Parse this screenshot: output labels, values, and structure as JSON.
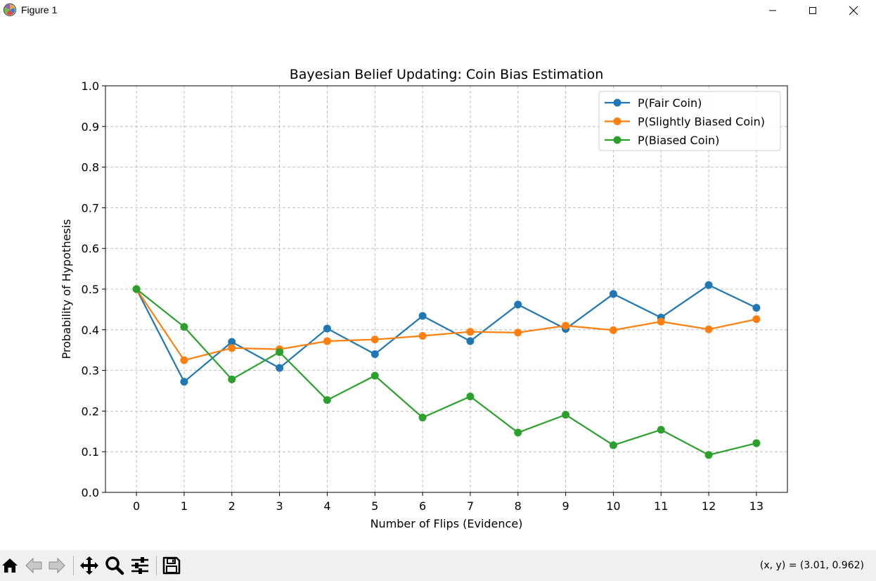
{
  "window": {
    "title": "Figure 1",
    "icons": {
      "app": "matplotlib-icon",
      "minimize": "minimize-icon",
      "maximize": "maximize-icon",
      "close": "close-icon"
    }
  },
  "toolbar": {
    "buttons": [
      {
        "name": "home-button",
        "icon": "home-icon"
      },
      {
        "name": "back-button",
        "icon": "back-arrow-icon"
      },
      {
        "name": "forward-button",
        "icon": "forward-arrow-icon"
      },
      {
        "name": "pan-button",
        "icon": "move-icon"
      },
      {
        "name": "zoom-button",
        "icon": "magnifier-icon"
      },
      {
        "name": "configure-subplots-button",
        "icon": "sliders-icon"
      },
      {
        "name": "save-button",
        "icon": "floppy-disk-icon"
      }
    ],
    "coordinates": "(x, y) = (3.01, 0.962)"
  },
  "chart_data": {
    "type": "line",
    "title": "Bayesian Belief Updating: Coin Bias Estimation",
    "xlabel": "Number of Flips (Evidence)",
    "ylabel": "Probability of Hypothesis",
    "x": [
      0,
      1,
      2,
      3,
      4,
      5,
      6,
      7,
      8,
      9,
      10,
      11,
      12,
      13
    ],
    "xlim": [
      -0.65,
      13.65
    ],
    "ylim": [
      0.0,
      1.0
    ],
    "xticks": [
      "0",
      "1",
      "2",
      "3",
      "4",
      "5",
      "6",
      "7",
      "8",
      "9",
      "10",
      "11",
      "12",
      "13"
    ],
    "yticks": [
      "0.0",
      "0.1",
      "0.2",
      "0.3",
      "0.4",
      "0.5",
      "0.6",
      "0.7",
      "0.8",
      "0.9",
      "1.0"
    ],
    "grid": true,
    "grid_style": "dashed",
    "legend_position": "top-right",
    "series": [
      {
        "name": "P(Fair Coin)",
        "color": "#1f77b4",
        "values": [
          0.5,
          0.272,
          0.37,
          0.306,
          0.403,
          0.34,
          0.434,
          0.372,
          0.462,
          0.402,
          0.488,
          0.43,
          0.51,
          0.454
        ]
      },
      {
        "name": "P(Slightly Biased Coin)",
        "color": "#ff7f0e",
        "values": [
          0.5,
          0.325,
          0.355,
          0.352,
          0.372,
          0.376,
          0.385,
          0.395,
          0.393,
          0.41,
          0.399,
          0.42,
          0.401,
          0.426
        ]
      },
      {
        "name": "P(Biased Coin)",
        "color": "#2ca02c",
        "values": [
          0.5,
          0.407,
          0.278,
          0.345,
          0.227,
          0.287,
          0.184,
          0.236,
          0.147,
          0.191,
          0.116,
          0.154,
          0.092,
          0.121
        ]
      }
    ]
  }
}
